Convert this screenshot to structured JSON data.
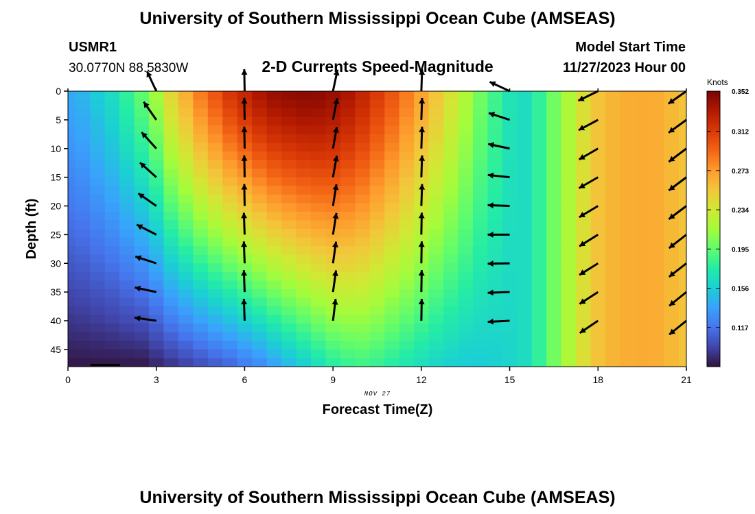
{
  "header": {
    "title": "University of Southern Mississippi Ocean Cube (AMSEAS)",
    "station": "USMR1",
    "coords": "30.0770N  88.5830W",
    "subtitle": "2-D Currents Speed-Magnitude",
    "model_start_label": "Model Start Time",
    "model_start_value": "11/27/2023 Hour 00"
  },
  "footer": {
    "title": "University of Southern Mississippi Ocean Cube (AMSEAS)"
  },
  "colors": {
    "colormap": [
      "#30123b",
      "#4145ab",
      "#4675ed",
      "#39a2fc",
      "#1bcfd4",
      "#24eca6",
      "#61fc6c",
      "#a4fc3b",
      "#d1e834",
      "#f3c63a",
      "#fe9b2d",
      "#f36315",
      "#d93806",
      "#b11901",
      "#7a0402"
    ],
    "arrow": "#000000"
  },
  "chart_data": {
    "type": "heatmap",
    "title": "2-D Currents Speed-Magnitude",
    "xlabel": "Forecast Time(Z)",
    "ylabel": "Depth (ft)",
    "date_label": "NOV 27",
    "colorbar_label": "Knots",
    "x_ticks": [
      0,
      3,
      6,
      9,
      12,
      15,
      18,
      21
    ],
    "y_ticks": [
      0,
      5,
      10,
      15,
      20,
      25,
      30,
      35,
      40,
      45
    ],
    "xlim": [
      0,
      21
    ],
    "ylim": [
      48,
      0
    ],
    "colorbar_ticks": [
      "0.352",
      "0.312",
      "0.273",
      "0.234",
      "0.195",
      "0.156",
      "0.117"
    ],
    "colorbar_range": [
      0.078,
      0.352
    ],
    "speed_time_hours": [
      0.0,
      0.5,
      1.0,
      1.5,
      2.0,
      2.5,
      3.0,
      3.5,
      4.0,
      4.5,
      5.0,
      5.5,
      6.0,
      6.5,
      7.0,
      7.5,
      8.0,
      8.5,
      9.0,
      9.5,
      10.0,
      10.5,
      11.0,
      11.5,
      12.0,
      12.5,
      13.0,
      13.5,
      14.0,
      14.5,
      15.0,
      15.5,
      16.0,
      16.5,
      17.0,
      17.5,
      18.0,
      18.5,
      19.0,
      19.5,
      20.0,
      20.5,
      21.0
    ],
    "speed_surface_knots": [
      0.14,
      0.145,
      0.155,
      0.165,
      0.18,
      0.195,
      0.215,
      0.245,
      0.265,
      0.285,
      0.3,
      0.315,
      0.325,
      0.335,
      0.342,
      0.345,
      0.347,
      0.346,
      0.342,
      0.335,
      0.325,
      0.312,
      0.3,
      0.285,
      0.27,
      0.255,
      0.238,
      0.22,
      0.2,
      0.185,
      0.17,
      0.165,
      0.18,
      0.2,
      0.22,
      0.24,
      0.255,
      0.262,
      0.265,
      0.266,
      0.265,
      0.26,
      0.255
    ],
    "speed_bottom_knots": [
      0.08,
      0.08,
      0.08,
      0.08,
      0.08,
      0.08,
      0.085,
      0.09,
      0.095,
      0.1,
      0.105,
      0.11,
      0.118,
      0.125,
      0.135,
      0.145,
      0.155,
      0.165,
      0.175,
      0.18,
      0.183,
      0.18,
      0.175,
      0.17,
      0.165,
      0.16,
      0.157,
      0.155,
      0.155,
      0.157,
      0.16,
      0.165,
      0.18,
      0.2,
      0.22,
      0.24,
      0.255,
      0.262,
      0.265,
      0.266,
      0.265,
      0.26,
      0.255
    ],
    "vector_times": [
      3,
      6,
      9,
      12,
      15,
      18,
      21
    ],
    "vector_depths": [
      0,
      5,
      10,
      15,
      20,
      25,
      30,
      35,
      40
    ],
    "vector_direction_deg": [
      [
        205,
        215,
        222,
        228,
        235,
        243,
        252,
        258,
        262
      ],
      [
        181,
        181,
        181,
        181,
        181,
        182,
        182,
        182,
        182
      ],
      [
        168,
        169,
        170,
        170,
        171,
        171,
        172,
        172,
        173
      ],
      [
        178,
        178,
        178,
        178,
        178,
        179,
        179,
        179,
        179
      ],
      [
        245,
        252,
        258,
        264,
        268,
        270,
        271,
        272,
        273
      ],
      [
        296,
        298,
        300,
        300,
        301,
        302,
        302,
        303,
        304
      ],
      [
        305,
        306,
        307,
        307,
        307,
        308,
        308,
        309,
        309
      ]
    ]
  }
}
